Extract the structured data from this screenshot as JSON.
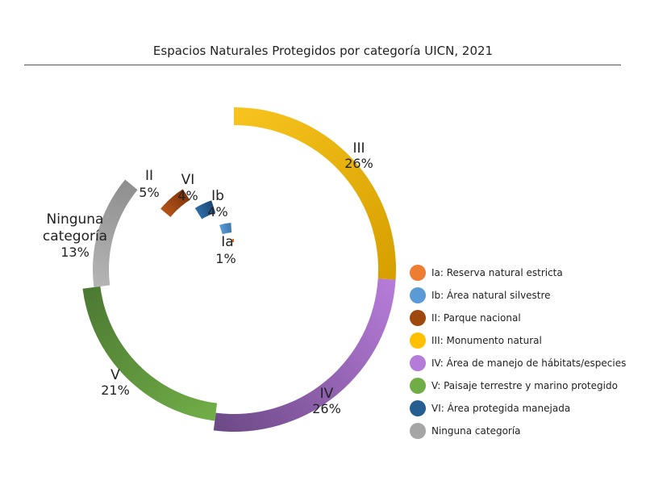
{
  "chart_data": {
    "type": "pie",
    "variant": "radial-ring",
    "title": "Espacios Naturales Protegidos por categoría UICN, 2021",
    "categories": [
      "Ia",
      "Ib",
      "II",
      "III",
      "IV",
      "V",
      "VI",
      "Ninguna categoría"
    ],
    "values": [
      1,
      4,
      5,
      26,
      26,
      21,
      4,
      13
    ],
    "value_labels": [
      "1%",
      "4%",
      "5%",
      "26%",
      "26%",
      "21%",
      "4%",
      "13%"
    ],
    "legend": [
      {
        "label": "Ia: Reserva natural estricta",
        "color": "#ED7D31"
      },
      {
        "label": "Ib: Área natural silvestre",
        "color": "#5B9BD5"
      },
      {
        "label": "II: Parque nacional",
        "color": "#9E480E"
      },
      {
        "label": "III: Monumento natural",
        "color": "#FFC000"
      },
      {
        "label": "IV: Área de manejo de hábitats/especies",
        "color": "#B57BD8"
      },
      {
        "label": "V: Paisaje terrestre y marino protegido",
        "color": "#70AD47"
      },
      {
        "label": "VI: Área protegida manejada",
        "color": "#255E91"
      },
      {
        "label": "Ninguna categoría",
        "color": "#A5A5A5"
      }
    ],
    "legend_position": "right"
  },
  "ring_labels": {
    "ia": {
      "name": "Ia",
      "pct": "1%"
    },
    "ib": {
      "name": "Ib",
      "pct": "4%"
    },
    "ii": {
      "name": "II",
      "pct": "5%"
    },
    "iii": {
      "name": "III",
      "pct": "26%"
    },
    "iv": {
      "name": "IV",
      "pct": "26%"
    },
    "v": {
      "name": "V",
      "pct": "21%"
    },
    "vi": {
      "name": "VI",
      "pct": "4%"
    },
    "ninguna": {
      "name_line1": "Ninguna",
      "name_line2": "categoría",
      "pct": "13%"
    }
  },
  "colors": {
    "ia": [
      "#ED7D31",
      "#C65E1E"
    ],
    "ib": [
      "#5B9BD5",
      "#3C78AE"
    ],
    "ii": [
      "#B5541A",
      "#7E3409"
    ],
    "iii": [
      "#F7C31D",
      "#D6A000"
    ],
    "iv": [
      "#B57BD8",
      "#6E4A88"
    ],
    "v": [
      "#70AD47",
      "#4D7A33"
    ],
    "vi": [
      "#2E6CA6",
      "#1D4A75"
    ],
    "ninguna": [
      "#B4B4B4",
      "#8F8F8F"
    ]
  }
}
